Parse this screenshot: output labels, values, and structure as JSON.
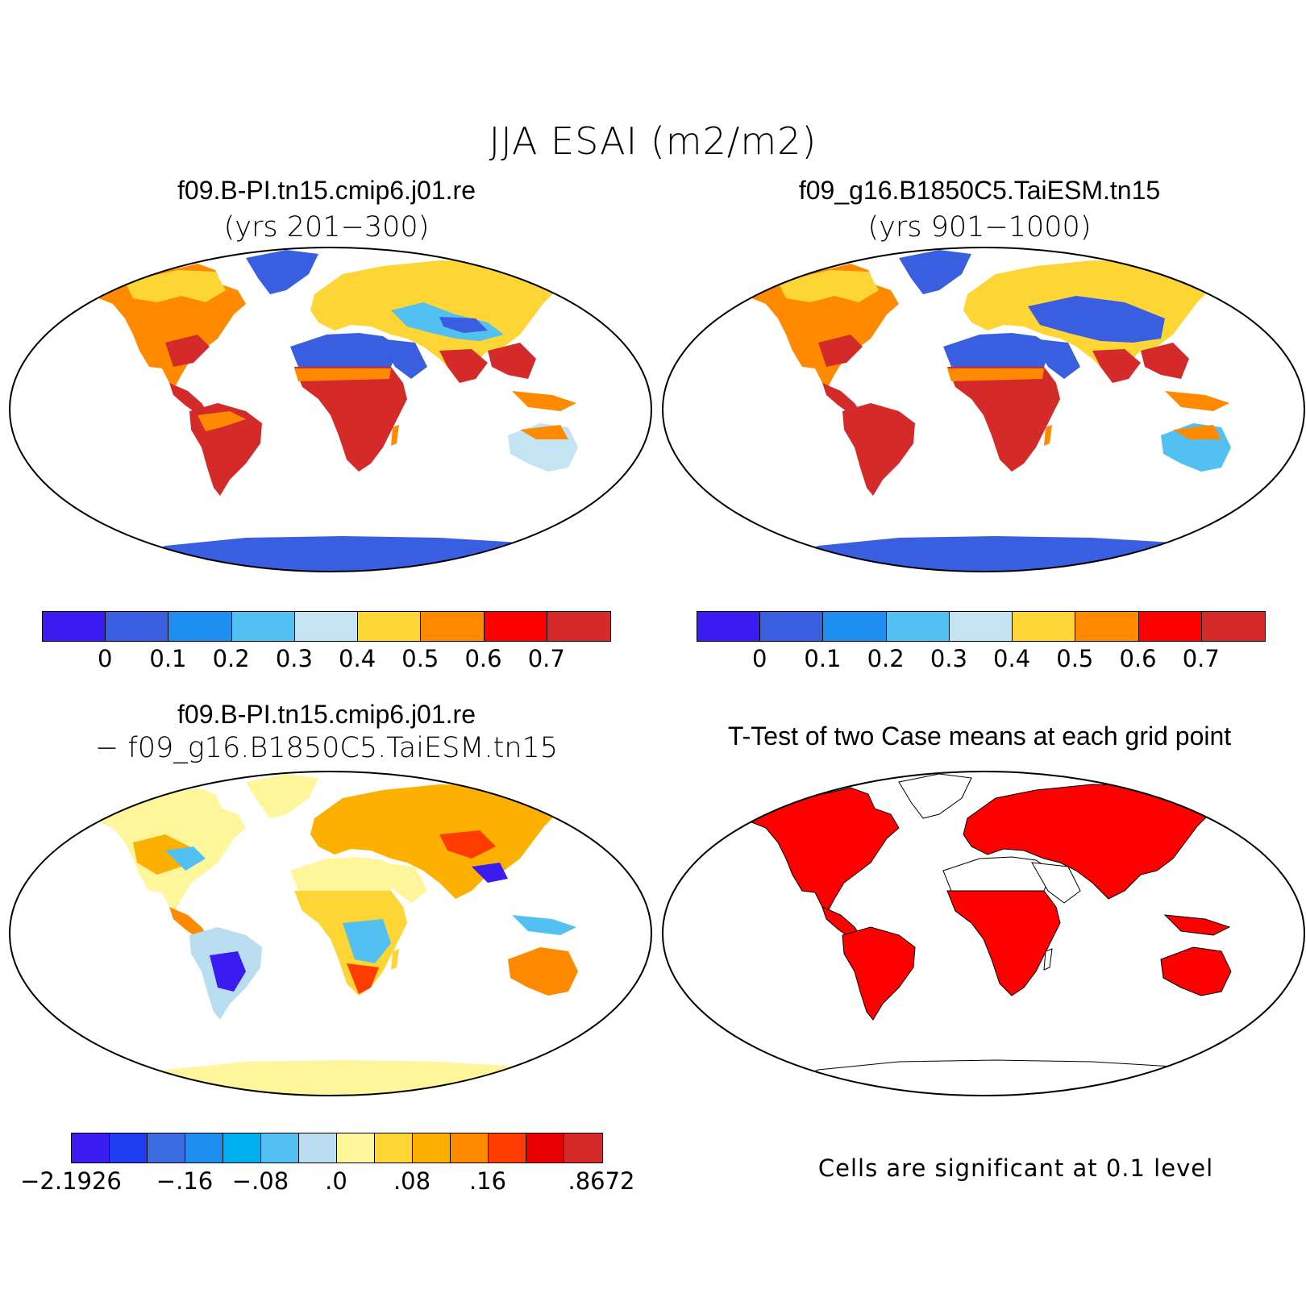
{
  "figure": {
    "title": "JJA ESAI (m2/m2)"
  },
  "panels": {
    "top_left": {
      "title": "f09.B-PI.tn15.cmip6.j01.re",
      "subtitle": "(yrs 201−300)",
      "colorbar": {
        "colors": [
          "#3a1cf0",
          "#3a5ee0",
          "#1e8ff0",
          "#52c0f0",
          "#c4e4f4",
          "#fdd535",
          "#ff8a00",
          "#ff0000",
          "#d42a2a"
        ],
        "ticks": [
          "0",
          "0.1",
          "0.2",
          "0.3",
          "0.4",
          "0.5",
          "0.6",
          "0.7"
        ]
      }
    },
    "top_right": {
      "title": "f09_g16.B1850C5.TaiESM.tn15",
      "subtitle": "(yrs 901−1000)",
      "colorbar": {
        "colors": [
          "#3a1cf0",
          "#3a5ee0",
          "#1e8ff0",
          "#52c0f0",
          "#c4e4f4",
          "#fdd535",
          "#ff8a00",
          "#ff0000",
          "#d42a2a"
        ],
        "ticks": [
          "0",
          "0.1",
          "0.2",
          "0.3",
          "0.4",
          "0.5",
          "0.6",
          "0.7"
        ]
      }
    },
    "bottom_left": {
      "title": "f09.B-PI.tn15.cmip6.j01.re",
      "subtitle": "− f09_g16.B1850C5.TaiESM.tn15",
      "colorbar": {
        "colors": [
          "#3a1cf0",
          "#1e3cf0",
          "#3a6ee0",
          "#1e8ff0",
          "#00b0f0",
          "#52c0f0",
          "#b8dcf0",
          "#fff59a",
          "#fdd535",
          "#fcb000",
          "#ff8a00",
          "#ff3c00",
          "#e60000",
          "#d42a2a"
        ],
        "ticks": [
          "−2.1926",
          "−.16",
          "−.08",
          ".0",
          ".08",
          ".16",
          ".8672"
        ]
      }
    },
    "bottom_right": {
      "title": "T-Test of two Case means at each grid point",
      "note": "Cells are significant at 0.1 level",
      "significant_color": "#ff0000"
    }
  }
}
